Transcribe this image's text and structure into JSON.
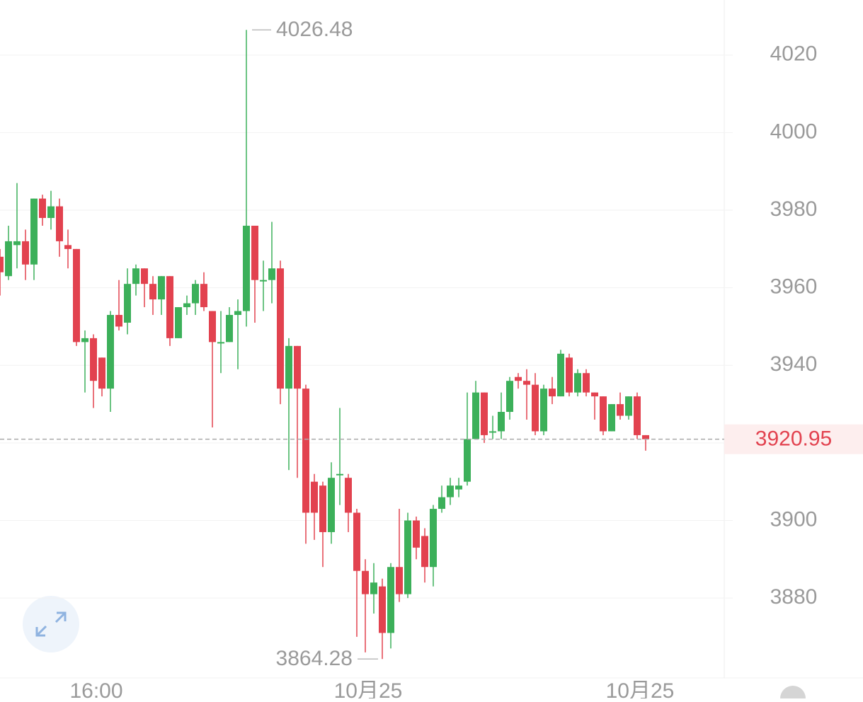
{
  "chart_data": {
    "type": "candlestick",
    "up_color": "#3cb05a",
    "down_color": "#e2424f",
    "ylim": [
      3859.4,
      4034.2
    ],
    "yticks": [
      3880,
      3900,
      3920,
      3940,
      3960,
      3980,
      4000,
      4020
    ],
    "grid": true,
    "categories": [
      null,
      null,
      null,
      null,
      null,
      null,
      null,
      null,
      null,
      null,
      null,
      "16:00",
      null,
      null,
      null,
      null,
      null,
      null,
      null,
      null,
      null,
      null,
      null,
      null,
      null,
      null,
      null,
      null,
      null,
      null,
      null,
      null,
      null,
      null,
      null,
      null,
      null,
      null,
      null,
      null,
      null,
      null,
      null,
      "10月25",
      null,
      null,
      null,
      null,
      null,
      null,
      null,
      null,
      null,
      null,
      null,
      null,
      null,
      null,
      null,
      null,
      null,
      null,
      null,
      null,
      null,
      null,
      null,
      null,
      null,
      null,
      null,
      null,
      null,
      null,
      null,
      "10月25",
      null
    ],
    "open": [
      3968,
      3963,
      3971,
      3972,
      3966,
      3983,
      3978,
      3981,
      3971,
      3970,
      3946,
      3947,
      3942,
      3934,
      3953,
      3951,
      3961,
      3965,
      3961,
      3957,
      3963,
      3947,
      3955,
      3956,
      3961,
      3954,
      3946,
      3946,
      3953,
      3954,
      3976,
      3962,
      3962,
      3965,
      3934,
      3945,
      3934,
      3910,
      3909,
      3897,
      3912,
      3911,
      3902,
      3887,
      3881,
      3883,
      3871,
      3888,
      3881,
      3900,
      3896,
      3888,
      3903,
      3906,
      3908,
      3910,
      3921,
      3933,
      3923,
      3923,
      3928,
      3937,
      3936,
      3935,
      3923,
      3934,
      3932,
      3942,
      3933,
      3938,
      3933,
      3932,
      3923,
      3930,
      3927,
      3932,
      3922
    ],
    "high": [
      3970,
      3976,
      3987,
      3975,
      3983,
      3984,
      3985,
      3983,
      3975,
      3970,
      3949,
      3948,
      3942,
      3954,
      3962,
      3965,
      3966,
      3965,
      3963,
      3963,
      3963,
      3955,
      3958,
      3962,
      3964,
      3954,
      3954,
      3955,
      3957,
      4026.48,
      3976,
      3967,
      3977,
      3967,
      3947,
      3945,
      3935,
      3912,
      3910,
      3915,
      3929,
      3912,
      3903,
      3890,
      3889,
      3885,
      3889,
      3903,
      3902,
      3901,
      3898,
      3904,
      3909,
      3911,
      3911,
      3933,
      3936,
      3933,
      3927,
      3933,
      3937,
      3938,
      3939,
      3938,
      3935,
      3937,
      3944,
      3943,
      3939,
      3939,
      3933,
      3932,
      3930,
      3933,
      3932,
      3933,
      3922
    ],
    "low": [
      3958,
      3962,
      3965,
      3962,
      3962,
      3976,
      3975,
      3968,
      3965,
      3945,
      3933,
      3929,
      3932,
      3928,
      3949,
      3948,
      3958,
      3955,
      3953,
      3953,
      3945,
      3947,
      3953,
      3953,
      3954,
      3924,
      3938,
      3946,
      3939,
      3950,
      3951,
      3954,
      3956,
      3930,
      3913,
      3911,
      3894,
      3895,
      3888,
      3894,
      3904,
      3897,
      3870,
      3866,
      3876,
      3864.28,
      3867,
      3879,
      3880,
      3890,
      3884,
      3883,
      3902,
      3904,
      3906,
      3909,
      3921,
      3920,
      3921,
      3921,
      3926,
      3934,
      3926,
      3922,
      3922,
      3930,
      3932,
      3932,
      3932,
      3932,
      3926,
      3922,
      3923,
      3926,
      3926,
      3921,
      3918
    ],
    "close": [
      3964,
      3972,
      3972,
      3966,
      3983,
      3978,
      3981,
      3972,
      3970,
      3946,
      3947,
      3936,
      3934,
      3953,
      3950,
      3961,
      3965,
      3961,
      3957,
      3963,
      3947,
      3955,
      3956,
      3961,
      3955,
      3946,
      3946,
      3953,
      3954,
      3976,
      3962,
      3962,
      3965,
      3934,
      3945,
      3934,
      3902,
      3902,
      3897,
      3911,
      3912,
      3902,
      3887,
      3881,
      3884,
      3871,
      3888,
      3881,
      3900,
      3893,
      3888,
      3903,
      3906,
      3909,
      3909,
      3921,
      3933,
      3922,
      3923,
      3928,
      3936,
      3936,
      3935,
      3923,
      3934,
      3932,
      3943,
      3933,
      3938,
      3933,
      3932,
      3923,
      3930,
      3927,
      3932,
      3922,
      3920.95
    ]
  }
}
